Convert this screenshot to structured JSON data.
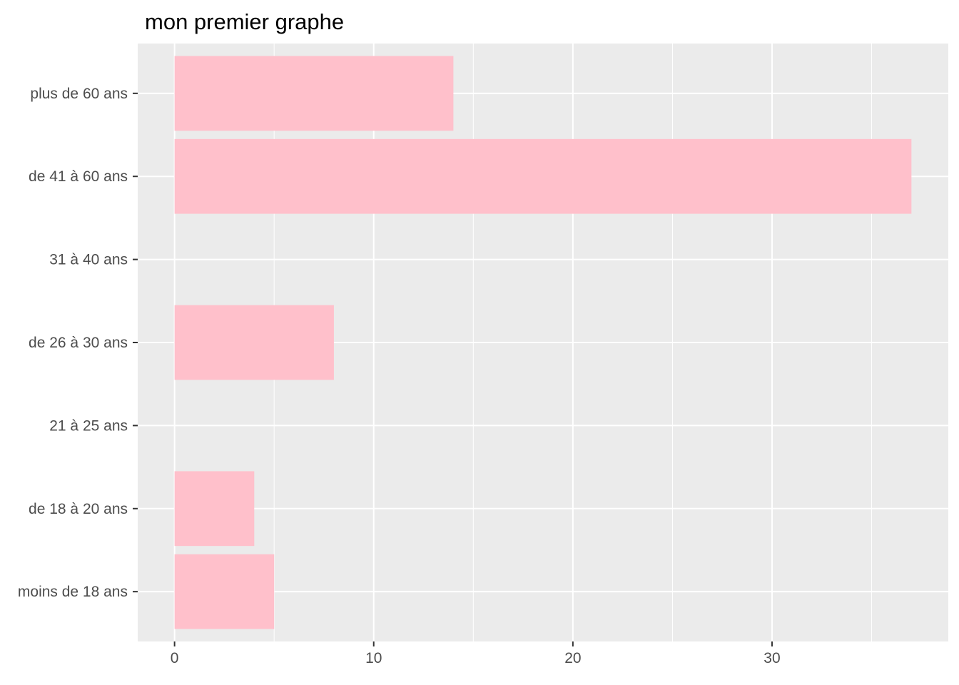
{
  "chart_data": {
    "type": "bar",
    "orientation": "horizontal",
    "title": "mon premier graphe",
    "xlabel": "",
    "ylabel": "",
    "categories": [
      "moins de 18 ans",
      "de 18 à 20 ans",
      "21 à 25 ans",
      "de 26 à 30 ans",
      "31 à 40 ans",
      "de 41 à 60 ans",
      "plus de 60 ans"
    ],
    "values": [
      5,
      4,
      0,
      8,
      0,
      37,
      14
    ],
    "xlim": [
      -1.85,
      38.85
    ],
    "x_ticks": [
      0,
      10,
      20,
      30
    ],
    "grid": true,
    "colors": {
      "bar": "#ffc0cb",
      "panel": "#ebebeb",
      "grid": "#ffffff",
      "text": "#4d4d4d",
      "tick": "#333333"
    }
  }
}
